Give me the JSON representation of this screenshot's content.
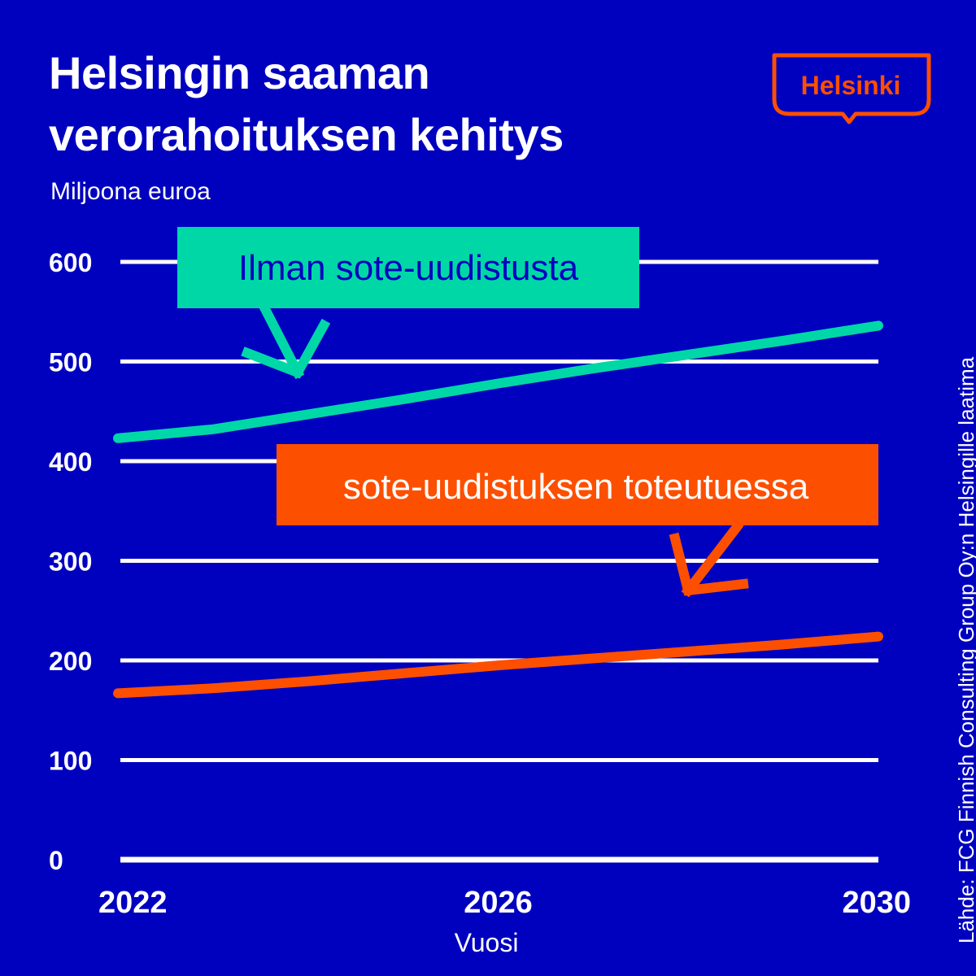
{
  "header": {
    "title_line1": "Helsingin saaman",
    "title_line2": "verorahoituksen kehitys",
    "unit_label": "Miljoona euroa"
  },
  "logo": {
    "text": "Helsinki",
    "color": "#FD4F00"
  },
  "source": "Lähde: FCG Finnish Consulting Group Oy:n Helsingille laatima",
  "colors": {
    "background": "#0000BF",
    "grid": "#FFFFFF",
    "series_a": "#00D7A7",
    "series_b": "#FD4F00",
    "label_a_text": "#0000BF",
    "label_b_text": "#FFFFFF"
  },
  "chart_data": {
    "type": "line",
    "title": "Helsingin saaman verorahoituksen kehitys",
    "ylabel": "Miljoona euroa",
    "xlabel": "Vuosi",
    "x": [
      2022,
      2023,
      2024,
      2025,
      2026,
      2027,
      2028,
      2029,
      2030
    ],
    "x_ticks": [
      "2022",
      "2026",
      "2030"
    ],
    "y_ticks": [
      "0",
      "100",
      "200",
      "300",
      "400",
      "500",
      "600"
    ],
    "ylim": [
      0,
      600
    ],
    "grid": true,
    "series": [
      {
        "name": "Ilman sote-uudistusta",
        "values": [
          423,
          432,
          447,
          462,
          478,
          493,
          507,
          521,
          536
        ],
        "color": "#00D7A7"
      },
      {
        "name": "sote-uudistuksen toteutuessa",
        "values": [
          167,
          172,
          179,
          187,
          195,
          202,
          209,
          216,
          224
        ],
        "color": "#FD4F00"
      }
    ]
  }
}
